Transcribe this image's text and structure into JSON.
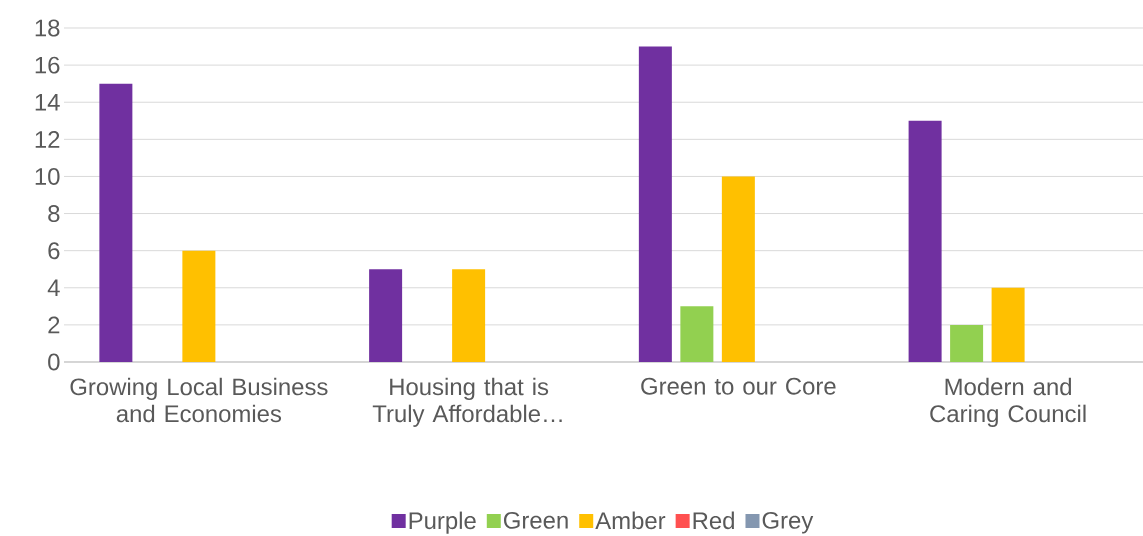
{
  "chart_data": {
    "type": "bar",
    "categories": [
      "Growing Local Business and Economies",
      "Housing that is Truly Affordable…",
      "Green to our Core",
      "Modern and Caring Council"
    ],
    "series": [
      {
        "name": "Purple",
        "color": "#7030a0",
        "values": [
          15,
          5,
          17,
          13
        ]
      },
      {
        "name": "Green",
        "color": "#92d050",
        "values": [
          0,
          0,
          3,
          2
        ]
      },
      {
        "name": "Amber",
        "color": "#ffc000",
        "values": [
          6,
          5,
          10,
          4
        ]
      },
      {
        "name": "Red",
        "color": "#ff5050",
        "values": [
          0,
          0,
          0,
          0
        ]
      },
      {
        "name": "Grey",
        "color": "#8497b0",
        "values": [
          0,
          0,
          0,
          0
        ]
      }
    ],
    "ylim": [
      0,
      18
    ],
    "yticks": [
      0,
      2,
      4,
      6,
      8,
      10,
      12,
      14,
      16,
      18
    ],
    "grid": "y",
    "legend": "bottom"
  }
}
